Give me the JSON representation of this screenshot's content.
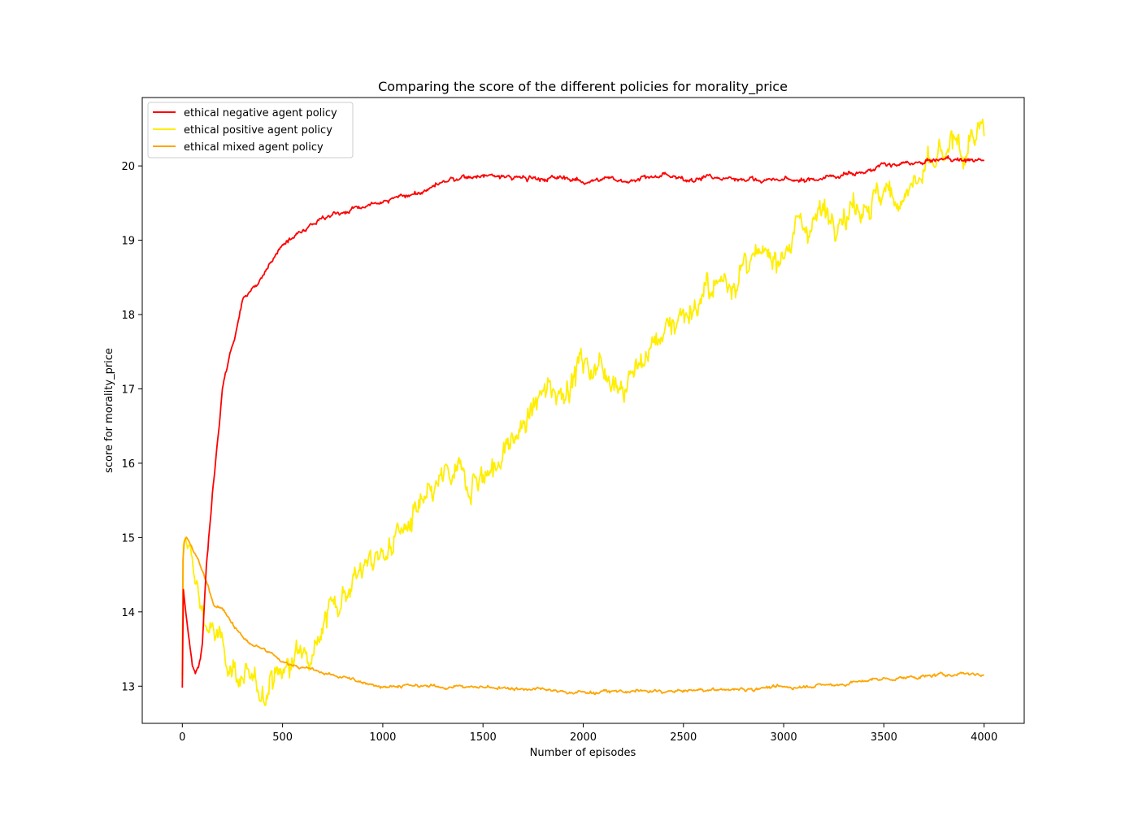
{
  "chart_data": {
    "type": "line",
    "title": "Comparing the score of the different policies for morality_price",
    "xlabel": "Number of episodes",
    "ylabel": "score for morality_price",
    "xlim": [
      -200,
      4200
    ],
    "ylim": [
      12.5,
      20.92
    ],
    "xticks": [
      0,
      500,
      1000,
      1500,
      2000,
      2500,
      3000,
      3500,
      4000
    ],
    "xtick_labels": [
      "0",
      "500",
      "1000",
      "1500",
      "2000",
      "2500",
      "3000",
      "3500",
      "4000"
    ],
    "yticks": [
      13,
      14,
      15,
      16,
      17,
      18,
      19,
      20
    ],
    "ytick_labels": [
      "13",
      "14",
      "15",
      "16",
      "17",
      "18",
      "19",
      "20"
    ],
    "grid": false,
    "legend_position": "upper-left",
    "series": [
      {
        "name": "ethical negative agent policy",
        "color": "#ff0000",
        "noise": 0.012,
        "x": [
          0,
          5,
          15,
          30,
          50,
          65,
          80,
          90,
          100,
          120,
          150,
          180,
          200,
          230,
          260,
          300,
          350,
          400,
          450,
          500,
          550,
          600,
          700,
          800,
          900,
          1000,
          1100,
          1200,
          1300,
          1400,
          1500,
          1600,
          1700,
          1800,
          1900,
          2000,
          2100,
          2200,
          2300,
          2400,
          2500,
          2600,
          2700,
          2800,
          2900,
          3000,
          3100,
          3200,
          3300,
          3400,
          3500,
          3600,
          3700,
          3800,
          3900,
          4000
        ],
        "y": [
          12.98,
          14.3,
          14.05,
          13.7,
          13.3,
          13.2,
          13.25,
          13.35,
          13.6,
          14.6,
          15.6,
          16.4,
          17.0,
          17.4,
          17.7,
          18.2,
          18.35,
          18.5,
          18.72,
          19.0,
          19.05,
          19.15,
          19.3,
          19.38,
          19.45,
          19.5,
          19.6,
          19.65,
          19.78,
          19.84,
          19.87,
          19.85,
          19.84,
          19.82,
          19.84,
          19.8,
          19.82,
          19.8,
          19.84,
          19.86,
          19.82,
          19.85,
          19.83,
          19.84,
          19.8,
          19.82,
          19.8,
          19.84,
          19.9,
          19.92,
          20.0,
          20.02,
          20.04,
          20.1,
          20.08,
          20.08
        ]
      },
      {
        "name": "ethical positive agent policy",
        "color": "#ffee00",
        "noise": 0.07,
        "x": [
          0,
          5,
          15,
          30,
          60,
          100,
          150,
          200,
          250,
          300,
          350,
          380,
          420,
          450,
          500,
          550,
          600,
          700,
          800,
          900,
          950,
          1000,
          1100,
          1200,
          1250,
          1300,
          1400,
          1500,
          1550,
          1600,
          1700,
          1800,
          1850,
          1900,
          1950,
          2000,
          2050,
          2100,
          2150,
          2200,
          2300,
          2400,
          2500,
          2600,
          2700,
          2800,
          2900,
          3000,
          3100,
          3200,
          3300,
          3400,
          3500,
          3600,
          3700,
          3800,
          3850,
          3900,
          3950,
          4000
        ],
        "y": [
          13.1,
          14.9,
          15.0,
          14.8,
          14.5,
          14.0,
          13.7,
          13.5,
          13.3,
          13.1,
          12.95,
          12.88,
          13.05,
          13.15,
          13.2,
          13.3,
          13.5,
          13.85,
          14.3,
          14.6,
          14.65,
          14.8,
          15.1,
          15.35,
          15.55,
          15.78,
          15.8,
          15.85,
          15.95,
          16.1,
          16.5,
          16.9,
          17.05,
          17.0,
          17.2,
          17.35,
          17.3,
          17.35,
          17.2,
          17.05,
          17.4,
          17.8,
          18.05,
          18.2,
          18.45,
          18.6,
          18.7,
          18.95,
          19.2,
          19.4,
          19.4,
          19.55,
          19.55,
          19.65,
          19.85,
          20.1,
          20.25,
          20.2,
          20.38,
          20.4
        ]
      },
      {
        "name": "ethical mixed agent policy",
        "color": "#ffa500",
        "noise": 0.008,
        "x": [
          0,
          3,
          10,
          20,
          40,
          80,
          120,
          160,
          200,
          250,
          300,
          350,
          400,
          450,
          500,
          550,
          600,
          700,
          800,
          900,
          1000,
          1200,
          1400,
          1600,
          1800,
          1900,
          2000,
          2100,
          2200,
          2300,
          2400,
          2500,
          2600,
          2700,
          2800,
          2900,
          3000,
          3100,
          3200,
          3300,
          3400,
          3500,
          3600,
          3700,
          3800,
          3900,
          4000
        ],
        "y": [
          13.15,
          14.7,
          14.95,
          15.0,
          14.9,
          14.7,
          14.4,
          14.1,
          14.05,
          13.85,
          13.65,
          13.55,
          13.5,
          13.42,
          13.32,
          13.3,
          13.25,
          13.18,
          13.12,
          13.05,
          13.0,
          13.0,
          12.99,
          12.98,
          12.95,
          12.92,
          12.92,
          12.92,
          12.93,
          12.93,
          12.93,
          12.93,
          12.95,
          12.95,
          12.96,
          12.98,
          12.98,
          13.0,
          13.01,
          13.03,
          13.07,
          13.1,
          13.11,
          13.13,
          13.15,
          13.18,
          13.15
        ]
      }
    ]
  }
}
